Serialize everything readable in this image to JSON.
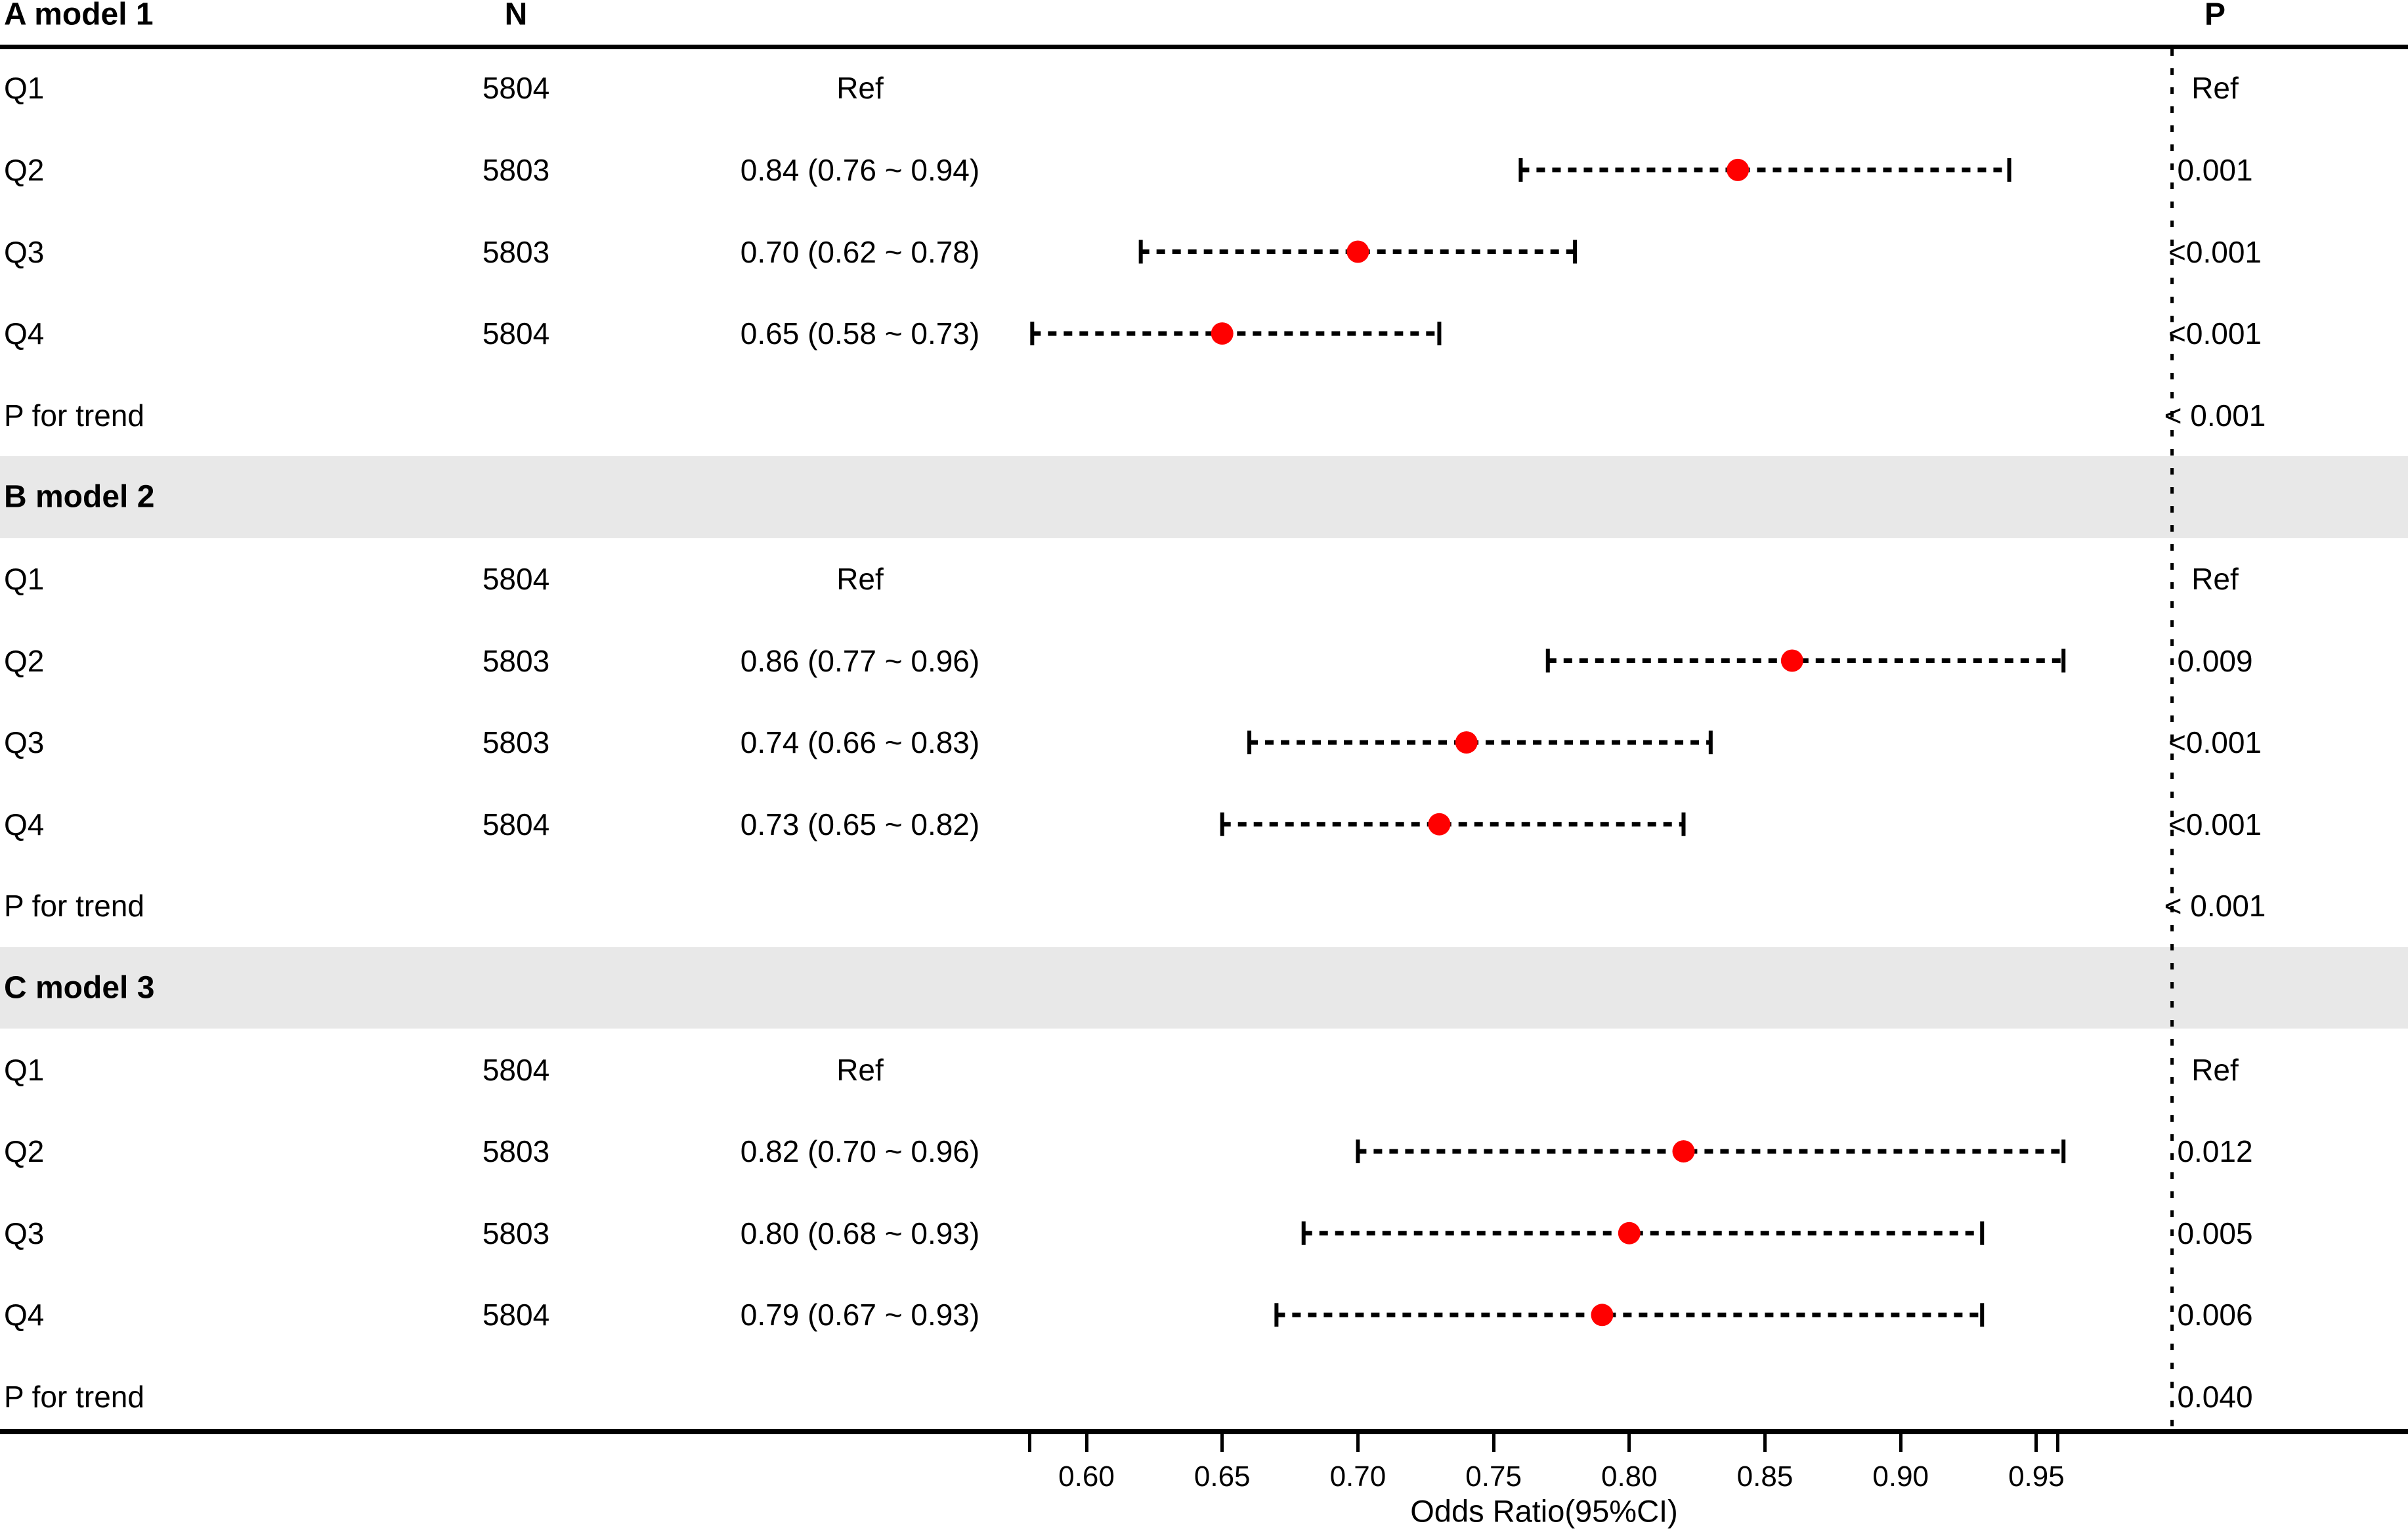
{
  "header": {
    "panel_a_title": "A model 1",
    "n_col": "N",
    "p_col": "P"
  },
  "colors": {
    "point_red": "#FF0000",
    "band_gray": "#E8E8E8",
    "text_black": "#000000"
  },
  "chart_data": {
    "type": "forest",
    "x_axis": {
      "label": "Odds Ratio(95%CI)",
      "ticks": [
        0.6,
        0.65,
        0.7,
        0.75,
        0.8,
        0.85,
        0.9,
        0.95
      ],
      "range": [
        0.579,
        0.958
      ],
      "reference_line": 1.0
    },
    "panels": [
      {
        "title": "A model 1",
        "rows": [
          {
            "label": "Q1",
            "n": "5804",
            "or_text": "Ref",
            "p": "Ref"
          },
          {
            "label": "Q2",
            "n": "5803",
            "or": 0.84,
            "lo": 0.76,
            "hi": 0.94,
            "or_text": "0.84 (0.76 ~ 0.94)",
            "p": "0.001"
          },
          {
            "label": "Q3",
            "n": "5803",
            "or": 0.7,
            "lo": 0.62,
            "hi": 0.78,
            "or_text": "0.70 (0.62 ~ 0.78)",
            "p": "<0.001"
          },
          {
            "label": "Q4",
            "n": "5804",
            "or": 0.65,
            "lo": 0.58,
            "hi": 0.73,
            "or_text": "0.65 (0.58 ~ 0.73)",
            "p": "<0.001"
          },
          {
            "label": "P for trend",
            "p": "< 0.001"
          }
        ]
      },
      {
        "title": "B model 2",
        "rows": [
          {
            "label": "Q1",
            "n": "5804",
            "or_text": "Ref",
            "p": "Ref"
          },
          {
            "label": "Q2",
            "n": "5803",
            "or": 0.86,
            "lo": 0.77,
            "hi": 0.96,
            "or_text": "0.86 (0.77 ~ 0.96)",
            "p": "0.009"
          },
          {
            "label": "Q3",
            "n": "5803",
            "or": 0.74,
            "lo": 0.66,
            "hi": 0.83,
            "or_text": "0.74 (0.66 ~ 0.83)",
            "p": "<0.001"
          },
          {
            "label": "Q4",
            "n": "5804",
            "or": 0.73,
            "lo": 0.65,
            "hi": 0.82,
            "or_text": "0.73 (0.65 ~ 0.82)",
            "p": "<0.001"
          },
          {
            "label": "P for trend",
            "p": "< 0.001"
          }
        ]
      },
      {
        "title": "C model 3",
        "rows": [
          {
            "label": "Q1",
            "n": "5804",
            "or_text": "Ref",
            "p": "Ref"
          },
          {
            "label": "Q2",
            "n": "5803",
            "or": 0.82,
            "lo": 0.7,
            "hi": 0.96,
            "or_text": "0.82 (0.70 ~ 0.96)",
            "p": "0.012"
          },
          {
            "label": "Q3",
            "n": "5803",
            "or": 0.8,
            "lo": 0.68,
            "hi": 0.93,
            "or_text": "0.80 (0.68 ~ 0.93)",
            "p": "0.005"
          },
          {
            "label": "Q4",
            "n": "5804",
            "or": 0.79,
            "lo": 0.67,
            "hi": 0.93,
            "or_text": "0.79 (0.67 ~ 0.93)",
            "p": "0.006"
          },
          {
            "label": "P for trend",
            "p": "0.040"
          }
        ]
      }
    ]
  }
}
